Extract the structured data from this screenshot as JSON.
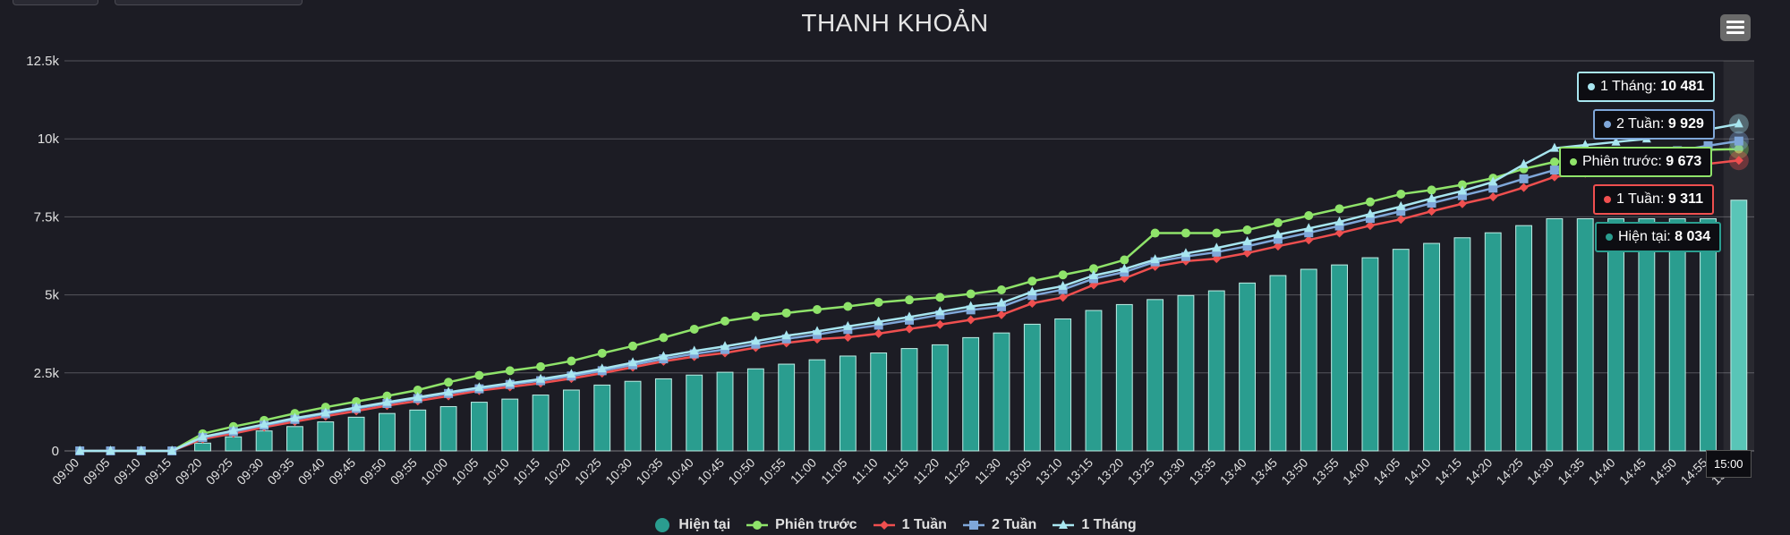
{
  "title": "THANH KHOẢN",
  "menu": {
    "icon": "hamburger-menu-icon"
  },
  "chart_data": {
    "type": "bar+line",
    "title": "THANH KHOẢN",
    "ylim": [
      0,
      12500
    ],
    "yticks": [
      0,
      2500,
      5000,
      7500,
      10000,
      12500
    ],
    "ytick_labels": [
      "0",
      "2.5k",
      "5k",
      "7.5k",
      "10k",
      "12.5k"
    ],
    "categories": [
      "09:00",
      "09:05",
      "09:10",
      "09:15",
      "09:20",
      "09:25",
      "09:30",
      "09:35",
      "09:40",
      "09:45",
      "09:50",
      "09:55",
      "10:00",
      "10:05",
      "10:10",
      "10:15",
      "10:20",
      "10:25",
      "10:30",
      "10:35",
      "10:40",
      "10:45",
      "10:50",
      "10:55",
      "11:00",
      "11:05",
      "11:10",
      "11:15",
      "11:20",
      "11:25",
      "11:30",
      "13:05",
      "13:10",
      "13:15",
      "13:20",
      "13:25",
      "13:30",
      "13:35",
      "13:40",
      "13:45",
      "13:50",
      "13:55",
      "14:00",
      "14:05",
      "14:10",
      "14:15",
      "14:20",
      "14:25",
      "14:30",
      "14:35",
      "14:40",
      "14:45",
      "14:50",
      "14:55",
      "15:00"
    ],
    "grid": true,
    "legend_position": "bottom-center",
    "series": [
      {
        "name": "Hiện tại",
        "kind": "bar",
        "color": "#2a9d8f",
        "values": [
          0,
          0,
          0,
          0,
          250,
          450,
          640,
          780,
          930,
          1080,
          1200,
          1310,
          1420,
          1560,
          1660,
          1790,
          1950,
          2110,
          2230,
          2310,
          2430,
          2520,
          2630,
          2780,
          2920,
          3040,
          3140,
          3280,
          3400,
          3630,
          3780,
          4060,
          4230,
          4500,
          4690,
          4850,
          4980,
          5130,
          5380,
          5620,
          5820,
          5960,
          6190,
          6460,
          6650,
          6830,
          6990,
          7220,
          7440,
          7440,
          7440,
          7440,
          7440,
          7440,
          8034
        ]
      },
      {
        "name": "Phiên trước",
        "kind": "line",
        "color": "#8fe36a",
        "marker": "circle",
        "values": [
          0,
          0,
          0,
          0,
          550,
          780,
          980,
          1200,
          1400,
          1580,
          1760,
          1950,
          2200,
          2420,
          2570,
          2700,
          2880,
          3130,
          3360,
          3630,
          3900,
          4160,
          4310,
          4420,
          4530,
          4630,
          4760,
          4840,
          4920,
          5030,
          5160,
          5440,
          5640,
          5840,
          6120,
          6980,
          6980,
          6980,
          7080,
          7310,
          7540,
          7760,
          7980,
          8230,
          8360,
          8530,
          8740,
          9040,
          9260,
          9360,
          9470,
          9570,
          9610,
          9650,
          9673
        ]
      },
      {
        "name": "1 Tuần",
        "kind": "line",
        "color": "#ef4f4f",
        "marker": "diamond",
        "values": [
          0,
          0,
          0,
          0,
          380,
          560,
          760,
          940,
          1110,
          1280,
          1450,
          1600,
          1760,
          1930,
          2050,
          2170,
          2320,
          2490,
          2680,
          2870,
          3020,
          3140,
          3310,
          3460,
          3580,
          3640,
          3760,
          3910,
          4050,
          4200,
          4360,
          4730,
          4920,
          5320,
          5530,
          5910,
          6080,
          6160,
          6340,
          6560,
          6760,
          6980,
          7220,
          7420,
          7680,
          7920,
          8140,
          8440,
          8780,
          8900,
          9000,
          9060,
          9100,
          9200,
          9311
        ]
      },
      {
        "name": "2 Tuần",
        "kind": "line",
        "color": "#7fa7d9",
        "marker": "square",
        "values": [
          0,
          0,
          0,
          0,
          430,
          620,
          820,
          1010,
          1190,
          1360,
          1520,
          1680,
          1840,
          1990,
          2130,
          2250,
          2400,
          2570,
          2760,
          2950,
          3110,
          3250,
          3420,
          3590,
          3730,
          3890,
          4030,
          4190,
          4360,
          4520,
          4620,
          4980,
          5170,
          5520,
          5730,
          6060,
          6230,
          6370,
          6560,
          6780,
          6990,
          7210,
          7450,
          7680,
          7940,
          8180,
          8420,
          8720,
          9000,
          9150,
          9360,
          9500,
          9620,
          9780,
          9929
        ]
      },
      {
        "name": "1 Tháng",
        "kind": "line",
        "color": "#a8e6f0",
        "marker": "triangle",
        "values": [
          0,
          0,
          0,
          0,
          450,
          650,
          850,
          1050,
          1220,
          1390,
          1560,
          1720,
          1880,
          2030,
          2170,
          2300,
          2460,
          2630,
          2830,
          3030,
          3200,
          3350,
          3520,
          3690,
          3830,
          3990,
          4140,
          4290,
          4460,
          4630,
          4740,
          5100,
          5280,
          5620,
          5830,
          6130,
          6330,
          6500,
          6710,
          6930,
          7130,
          7340,
          7590,
          7830,
          8090,
          8330,
          8620,
          9180,
          9700,
          9800,
          9900,
          10000,
          10100,
          10300,
          10481
        ]
      }
    ]
  },
  "tooltips": [
    {
      "series": "1 Tháng",
      "value": "10 481",
      "color": "#a8e6f0"
    },
    {
      "series": "2 Tuần",
      "value": "9 929",
      "color": "#7fa7d9"
    },
    {
      "series": "Phiên trước",
      "value": "9 673",
      "color": "#8fe36a"
    },
    {
      "series": "1 Tuần",
      "value": "9 311",
      "color": "#ef4f4f"
    },
    {
      "series": "Hiện tại",
      "value": "8 034",
      "color": "#2a9d8f"
    }
  ],
  "x_tooltip": "15:00",
  "legend": [
    {
      "label": "Hiện tại",
      "color": "#2a9d8f",
      "icon": "circle-icon"
    },
    {
      "label": "Phiên trước",
      "color": "#8fe36a",
      "icon": "circle-line-icon"
    },
    {
      "label": "1 Tuần",
      "color": "#ef4f4f",
      "icon": "diamond-line-icon"
    },
    {
      "label": "2 Tuần",
      "color": "#7fa7d9",
      "icon": "square-line-icon"
    },
    {
      "label": "1 Tháng",
      "color": "#a8e6f0",
      "icon": "triangle-line-icon"
    }
  ]
}
